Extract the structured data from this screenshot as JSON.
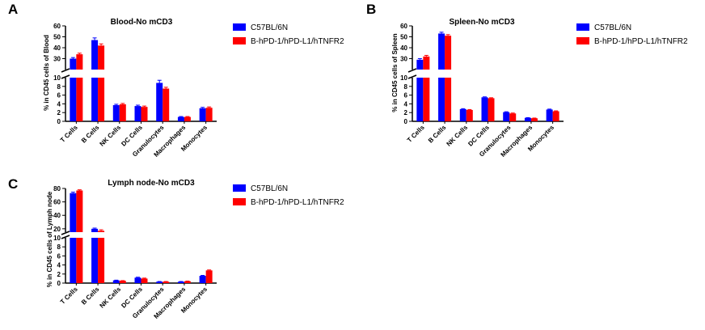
{
  "chart_data": [
    {
      "type": "bar",
      "panel_label": "A",
      "title": "Blood-No mCD3",
      "ylabel": "% in CD45 cells of Blood",
      "categories": [
        "T Cells",
        "B Cells",
        "NK Cells",
        "DC Cells",
        "Granulocytes",
        "Macrophages",
        "Monocytes"
      ],
      "y_segments": [
        {
          "range": [
            0,
            10
          ],
          "ticks": [
            0,
            2,
            4,
            6,
            8,
            10
          ]
        },
        {
          "range": [
            20,
            60
          ],
          "ticks": [
            30,
            40,
            50,
            60
          ]
        }
      ],
      "series": [
        {
          "name": "C57BL/6N",
          "color": "#0000ff",
          "values": [
            30,
            47,
            3.7,
            3.5,
            8.8,
            1.0,
            3.0
          ],
          "errors": [
            1,
            2,
            0.2,
            0.2,
            0.6,
            0.1,
            0.2
          ]
        },
        {
          "name": "B-hPD-1/hPD-L1/hTNFR2",
          "color": "#ff0000",
          "values": [
            34,
            42,
            3.9,
            3.3,
            7.5,
            1.0,
            3.1
          ],
          "errors": [
            1,
            1.5,
            0.2,
            0.2,
            0.3,
            0.1,
            0.2
          ]
        }
      ],
      "legend_position": "right"
    },
    {
      "type": "bar",
      "panel_label": "B",
      "title": "Spleen-No mCD3",
      "ylabel": "% in CD45 cells of Spleen",
      "categories": [
        "T Cells",
        "B Cells",
        "NK Cells",
        "DC Cells",
        "Granulocytes",
        "Macrophages",
        "Monocytes"
      ],
      "y_segments": [
        {
          "range": [
            0,
            10
          ],
          "ticks": [
            0,
            2,
            4,
            6,
            8,
            10
          ]
        },
        {
          "range": [
            20,
            60
          ],
          "ticks": [
            30,
            40,
            50,
            60
          ]
        }
      ],
      "series": [
        {
          "name": "C57BL/6N",
          "color": "#0000ff",
          "values": [
            29,
            53,
            2.8,
            5.5,
            2.1,
            0.8,
            2.7
          ],
          "errors": [
            1,
            1.2,
            0.1,
            0.1,
            0.1,
            0.05,
            0.1
          ]
        },
        {
          "name": "B-hPD-1/hPD-L1/hTNFR2",
          "color": "#ff0000",
          "values": [
            32,
            51,
            2.6,
            5.3,
            1.8,
            0.7,
            2.3
          ],
          "errors": [
            1,
            1,
            0.1,
            0.1,
            0.1,
            0.05,
            0.1
          ]
        }
      ],
      "legend_position": "right"
    },
    {
      "type": "bar",
      "panel_label": "C",
      "title": "Lymph node-No mCD3",
      "ylabel": "% in CD45 cells of Lymph node",
      "categories": [
        "T Cells",
        "B Cells",
        "NK Cells",
        "DC Cells",
        "Granulocytes",
        "Macrophages",
        "Monocytes"
      ],
      "y_segments": [
        {
          "range": [
            0,
            10
          ],
          "ticks": [
            0,
            2,
            4,
            6,
            8,
            10
          ]
        },
        {
          "range": [
            15,
            80
          ],
          "ticks": [
            20,
            40,
            60,
            80
          ]
        }
      ],
      "series": [
        {
          "name": "C57BL/6N",
          "color": "#0000ff",
          "values": [
            73,
            20,
            0.6,
            1.2,
            0.3,
            0.3,
            1.6
          ],
          "errors": [
            1.5,
            1,
            0.05,
            0.1,
            0.05,
            0.05,
            0.1
          ]
        },
        {
          "name": "B-hPD-1/hPD-L1/hTNFR2",
          "color": "#ff0000",
          "values": [
            77,
            17,
            0.5,
            1.0,
            0.3,
            0.4,
            2.8
          ],
          "errors": [
            1,
            1.5,
            0.05,
            0.1,
            0.05,
            0.05,
            0.1
          ]
        }
      ],
      "legend_position": "right"
    }
  ]
}
